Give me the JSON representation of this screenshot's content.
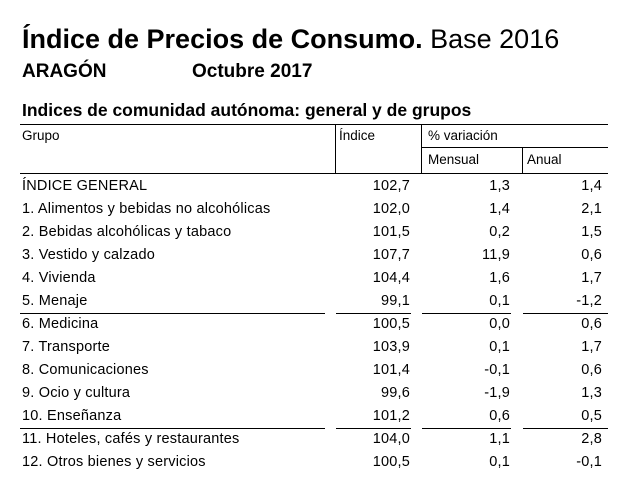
{
  "header": {
    "title_bold": "Índice de Precios de Consumo.",
    "title_normal": "Base 2016",
    "region": "ARAGÓN",
    "period": "Octubre 2017",
    "subtitle": "Indices de comunidad autónoma: general y de grupos"
  },
  "table": {
    "columns": {
      "grupo": "Grupo",
      "indice": "Índice",
      "variacion": "% variación",
      "mensual": "Mensual",
      "anual": "Anual"
    },
    "rows": [
      {
        "grupo": "ÍNDICE GENERAL",
        "indice": "102,7",
        "mensual": "1,3",
        "anual": "1,4"
      },
      {
        "grupo": "1. Alimentos y bebidas no alcohólicas",
        "indice": "102,0",
        "mensual": "1,4",
        "anual": "2,1"
      },
      {
        "grupo": "2. Bebidas alcohólicas y tabaco",
        "indice": "101,5",
        "mensual": "0,2",
        "anual": "1,5"
      },
      {
        "grupo": "3. Vestido y calzado",
        "indice": "107,7",
        "mensual": "11,9",
        "anual": "0,6"
      },
      {
        "grupo": "4. Vivienda",
        "indice": "104,4",
        "mensual": "1,6",
        "anual": "1,7"
      },
      {
        "grupo": "5. Menaje",
        "indice": "99,1",
        "mensual": "0,1",
        "anual": "-1,2"
      },
      {
        "grupo": "6. Medicina",
        "indice": "100,5",
        "mensual": "0,0",
        "anual": "0,6"
      },
      {
        "grupo": "7. Transporte",
        "indice": "103,9",
        "mensual": "0,1",
        "anual": "1,7"
      },
      {
        "grupo": "8. Comunicaciones",
        "indice": "101,4",
        "mensual": "-0,1",
        "anual": "0,6"
      },
      {
        "grupo": "9. Ocio y cultura",
        "indice": "99,6",
        "mensual": "-1,9",
        "anual": "1,3"
      },
      {
        "grupo": "10. Enseñanza",
        "indice": "101,2",
        "mensual": "0,6",
        "anual": "0,5"
      },
      {
        "grupo": "11. Hoteles, cafés y restaurantes",
        "indice": "104,0",
        "mensual": "1,1",
        "anual": "2,8"
      },
      {
        "grupo": "12. Otros bienes y servicios",
        "indice": "100,5",
        "mensual": "0,1",
        "anual": "-0,1"
      }
    ]
  }
}
